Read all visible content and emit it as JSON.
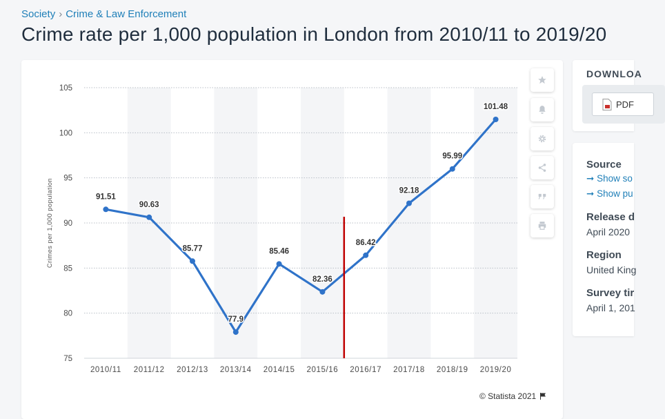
{
  "breadcrumb": {
    "items": [
      "Society",
      "Crime & Law Enforcement"
    ],
    "separator": "›"
  },
  "title": "Crime rate per 1,000 population in London from 2010/11 to 2019/20",
  "toolbar": {
    "icons": [
      "star-icon",
      "bell-icon",
      "gear-icon",
      "share-icon",
      "quote-icon",
      "print-icon"
    ]
  },
  "copyright": "© Statista 2021",
  "download": {
    "title": "DOWNLOA",
    "pdf_label": "PDF"
  },
  "info": {
    "source_heading": "Source",
    "source_link1": "Show so",
    "source_link2": "Show pu",
    "release_heading": "Release d",
    "release_value": "April 2020",
    "region_heading": "Region",
    "region_value": "United King",
    "survey_heading": "Survey tir",
    "survey_value": "April 1, 201"
  },
  "colors": {
    "line": "#2f73c9",
    "marker": "#c00000",
    "accent": "#1f7fb8"
  },
  "chart_data": {
    "type": "line",
    "categories": [
      "2010/11",
      "2011/12",
      "2012/13",
      "2013/14",
      "2014/15",
      "2015/16",
      "2016/17",
      "2017/18",
      "2018/19",
      "2019/20"
    ],
    "values": [
      91.51,
      90.63,
      85.77,
      77.9,
      85.46,
      82.36,
      86.42,
      92.18,
      95.99,
      101.48
    ],
    "data_labels": [
      "91.51",
      "90.63",
      "85.77",
      "77.9",
      "85.46",
      "82.36",
      "86.42",
      "92.18",
      "95.99",
      "101.48"
    ],
    "ylabel": "Crimes per 1,000 population",
    "ylim": [
      75,
      105
    ],
    "yticks": [
      75,
      80,
      85,
      90,
      95,
      100,
      105
    ],
    "grid": true,
    "marker_line_between": [
      "2015/16",
      "2016/17"
    ]
  }
}
